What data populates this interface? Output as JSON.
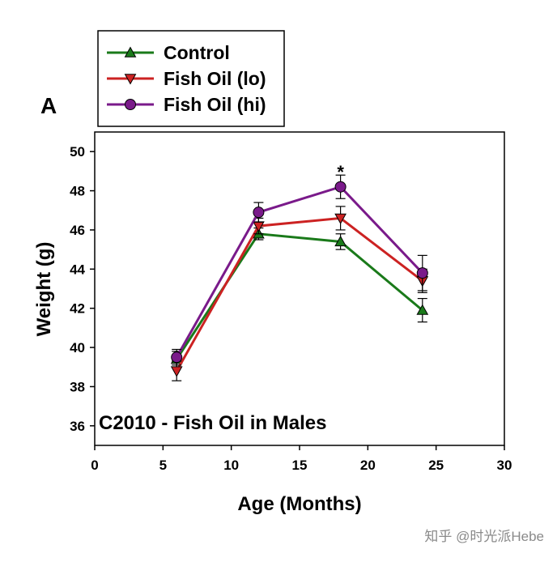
{
  "panel_label": "A",
  "watermark": "知乎 @时光派Hebe",
  "significance_marker": "*",
  "chart_data": {
    "type": "line",
    "title": "C2010 - Fish Oil in Males",
    "xlabel": "Age (Months)",
    "ylabel": "Weight (g)",
    "xlim": [
      0,
      30
    ],
    "ylim": [
      35,
      51
    ],
    "xticks": [
      0,
      5,
      10,
      15,
      20,
      25,
      30
    ],
    "yticks": [
      36,
      38,
      40,
      42,
      44,
      46,
      48,
      50
    ],
    "grid": false,
    "legend_position": "top-left, outside plot",
    "x": [
      6,
      12,
      18,
      24
    ],
    "series": [
      {
        "name": "Control",
        "color": "#1a7a1a",
        "marker": "triangle-up",
        "values": [
          39.4,
          45.8,
          45.4,
          41.9
        ],
        "errors": [
          0.4,
          0.3,
          0.4,
          0.6
        ]
      },
      {
        "name": "Fish Oil (lo)",
        "color": "#cc2222",
        "marker": "triangle-down",
        "values": [
          38.8,
          46.2,
          46.6,
          43.4
        ],
        "errors": [
          0.5,
          0.4,
          0.6,
          0.6
        ]
      },
      {
        "name": "Fish Oil (hi)",
        "color": "#7a1a8a",
        "marker": "circle",
        "values": [
          39.5,
          46.9,
          48.2,
          43.8
        ],
        "errors": [
          0.4,
          0.5,
          0.6,
          0.9
        ]
      }
    ],
    "annotations": [
      {
        "text": "*",
        "x": 18,
        "y": 48.9
      }
    ]
  }
}
